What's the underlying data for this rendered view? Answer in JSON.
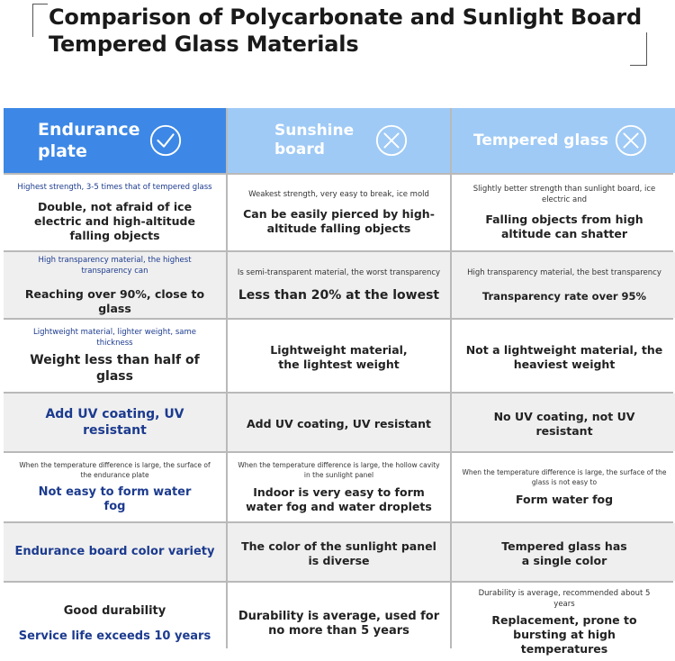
{
  "title": "Comparison of Polycarbonate and Sunlight Board Tempered Glass Materials",
  "headers": {
    "endurance": {
      "label_line1": "Endurance",
      "label_line2": "plate",
      "icon": "check-circle-icon"
    },
    "sunshine": {
      "label_line1": "Sunshine",
      "label_line2": "board",
      "icon": "x-circle-icon"
    },
    "tempered": {
      "label": "Tempered glass",
      "icon": "x-circle-icon"
    }
  },
  "rows": [
    {
      "endurance": {
        "note": "Highest strength, 3-5 times that of tempered glass",
        "main": "Double, not afraid of ice electric and high-altitude falling objects"
      },
      "sunshine": {
        "note": "Weakest strength, very easy to break, ice mold",
        "main": "Can be easily pierced by high-altitude falling objects"
      },
      "tempered": {
        "note": "Slightly better strength than sunlight board, ice electric and",
        "main": "Falling objects from high altitude can shatter"
      }
    },
    {
      "endurance": {
        "note": "High transparency material, the highest transparency can",
        "main": "Reaching over 90%, close to glass"
      },
      "sunshine": {
        "note": "Is semi-transparent material, the worst transparency",
        "main": "Less than 20% at the lowest"
      },
      "tempered": {
        "note": "High transparency material, the best transparency",
        "main": "Transparency rate over 95%"
      }
    },
    {
      "endurance": {
        "note": "Lightweight material, lighter weight, same thickness",
        "main": "Weight less than half of glass"
      },
      "sunshine": {
        "main": "Lightweight material, the lightest weight"
      },
      "tempered": {
        "main": "Not a lightweight material, the heaviest weight"
      }
    },
    {
      "endurance": {
        "main": "Add UV coating, UV resistant"
      },
      "sunshine": {
        "main": "Add UV coating, UV resistant"
      },
      "tempered": {
        "main": "No UV coating, not UV resistant"
      }
    },
    {
      "endurance": {
        "note": "When the temperature difference is large, the surface of the endurance plate",
        "main": "Not easy to form water fog"
      },
      "sunshine": {
        "note": "When the temperature difference is large, the hollow cavity in the sunlight panel",
        "main": "Indoor is very easy to form water fog and water droplets"
      },
      "tempered": {
        "note": "When the temperature difference is large, the surface of the glass is not easy to",
        "main": "Form water fog"
      }
    },
    {
      "endurance": {
        "main": "Endurance board color variety"
      },
      "sunshine": {
        "main": "The color of the sunlight panel is diverse"
      },
      "tempered": {
        "main": "Tempered glass has a single color"
      }
    },
    {
      "endurance": {
        "line1": "Good durability",
        "line2": "Service life exceeds 10 years"
      },
      "sunshine": {
        "main": "Durability is average, used for no more than 5 years"
      },
      "tempered": {
        "note": "Durability is average, recommended about 5 years",
        "main": "Replacement, prone to bursting at high temperatures"
      }
    }
  ],
  "colors": {
    "accent": "#3d88e6",
    "header_light": "#9fcaf6",
    "highlight_text": "#1c3b8f"
  }
}
